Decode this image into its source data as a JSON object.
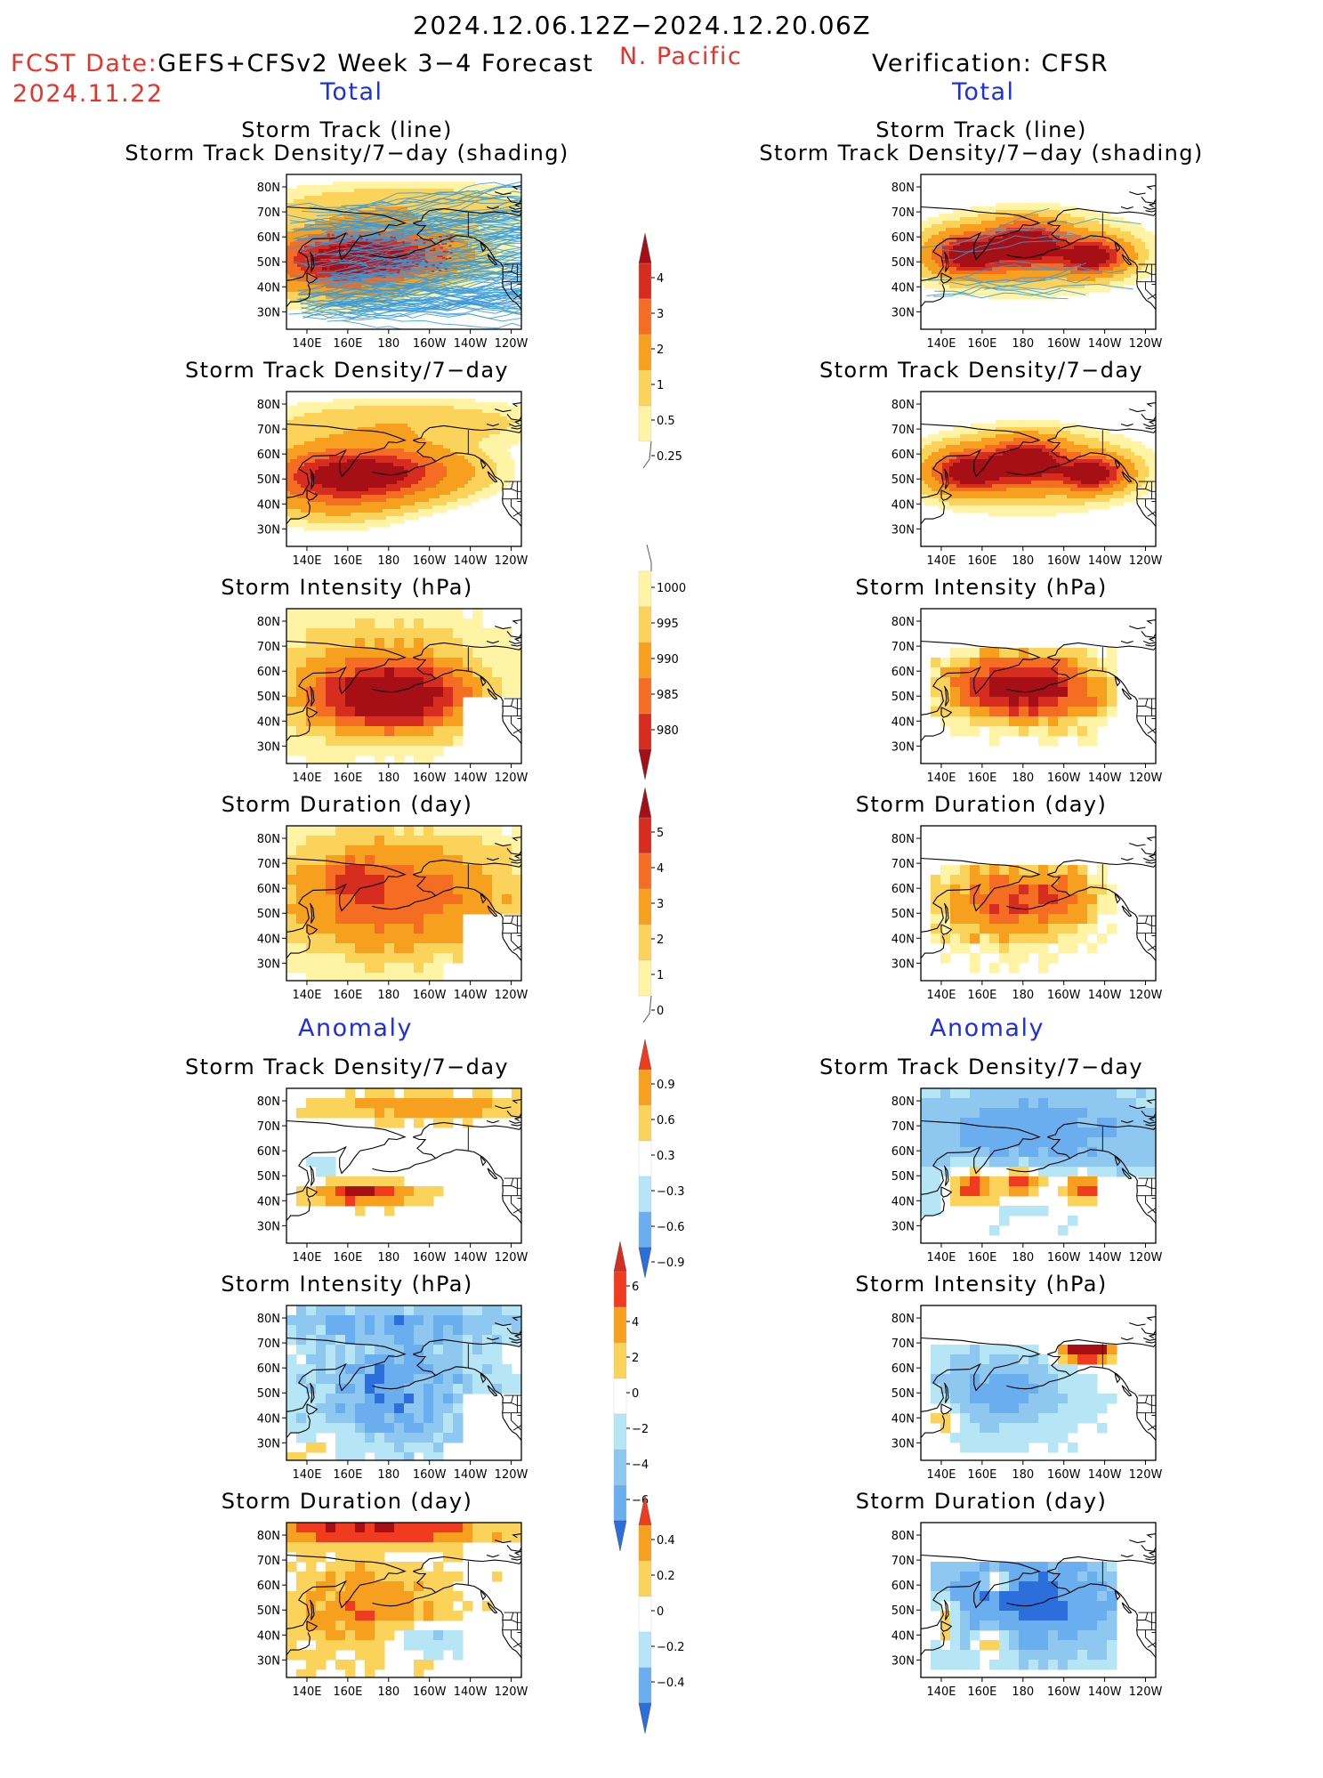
{
  "header": {
    "period": "2024.12.06.12Z−2024.12.20.06Z",
    "fcst_label": "FCST Date:",
    "forecast_name": "GEFS+CFSv2 Week 3−4 Forecast",
    "fcst_date": "2024.11.22",
    "region": "N. Pacific",
    "verification": "Verification: CFSR"
  },
  "sections": {
    "total_left": "Total",
    "total_right": "Total",
    "anomaly_left": "Anomaly",
    "anomaly_right": "Anomaly"
  },
  "panel_titles": {
    "track_line": "Storm Track (line)",
    "track_density_shading": "Storm Track Density/7−day (shading)",
    "track_density": "Storm Track Density/7−day",
    "intensity": "Storm Intensity (hPa)",
    "duration": "Storm Duration (day)"
  },
  "axes": {
    "lat_labels": [
      "80N",
      "70N",
      "60N",
      "50N",
      "40N",
      "30N"
    ],
    "lon_labels": [
      "140E",
      "160E",
      "180",
      "160W",
      "140W",
      "120W"
    ]
  },
  "colorbars": {
    "density_total": {
      "labels": [
        "4",
        "3",
        "2",
        "1",
        "0.5",
        "0.25"
      ],
      "colors": [
        "#a50f15",
        "#d62d20",
        "#f46d23",
        "#f7a01f",
        "#fcd35a",
        "#fff3a6"
      ]
    },
    "intensity_total": {
      "labels": [
        "1000",
        "995",
        "990",
        "985",
        "980"
      ],
      "colors": [
        "#fff3a6",
        "#fcd35a",
        "#f7a01f",
        "#f46d23",
        "#d62d20",
        "#a50f15"
      ]
    },
    "duration_total": {
      "labels": [
        "5",
        "4",
        "3",
        "2",
        "1",
        "0"
      ],
      "colors": [
        "#a50f15",
        "#d62d20",
        "#f46d23",
        "#f7a01f",
        "#fcd35a",
        "#fff3a6"
      ]
    },
    "density_anom": {
      "labels": [
        "0.9",
        "0.6",
        "0.3",
        "−0.3",
        "−0.6",
        "−0.9"
      ],
      "colors": [
        "#f03b20",
        "#f7a01f",
        "#fcd35a",
        "#ffffff",
        "#b6e6f5",
        "#6aaef0",
        "#2c6fdc"
      ]
    },
    "intensity_anom": {
      "labels": [
        "6",
        "4",
        "2",
        "0",
        "−2",
        "−4",
        "−6"
      ],
      "colors": [
        "#d62d20",
        "#f03b20",
        "#f7a01f",
        "#fcd35a",
        "#ffffff",
        "#b6e6f5",
        "#8ec7f0",
        "#6aaef0",
        "#2c6fdc"
      ]
    },
    "duration_anom": {
      "labels": [
        "0.4",
        "0.2",
        "0",
        "−0.2",
        "−0.4"
      ],
      "colors": [
        "#f03b20",
        "#f7a01f",
        "#fcd35a",
        "#ffffff",
        "#b6e6f5",
        "#6aaef0",
        "#2c6fdc"
      ]
    }
  }
}
